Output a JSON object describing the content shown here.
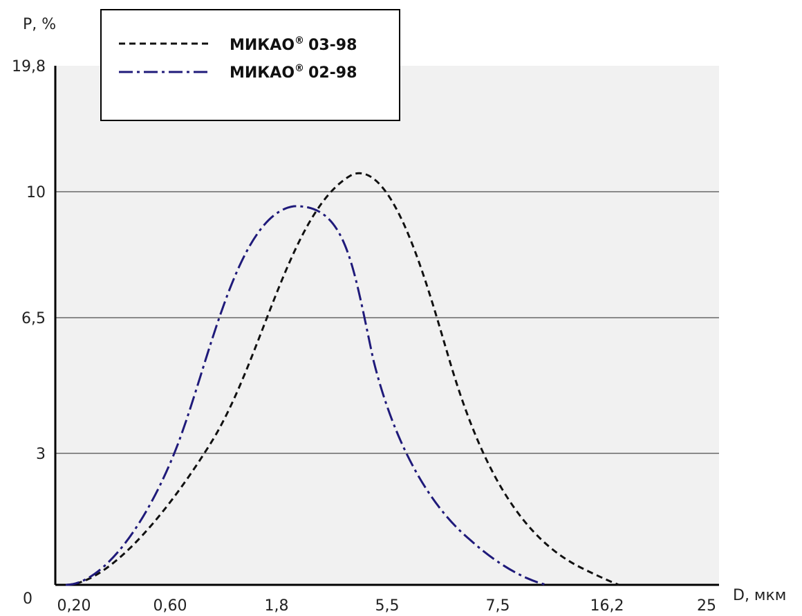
{
  "chart_data": {
    "type": "line",
    "ylabel": "P, %",
    "xlabel": "D, мкм",
    "y_ticks": [
      "0",
      "3",
      "6,5",
      "10",
      "19,8"
    ],
    "x_ticks": [
      "0,20",
      "0,60",
      "1,8",
      "5,5",
      "7,5",
      "16,2",
      "25"
    ],
    "x_scale": "categorical (irregular tick spacing)",
    "grid": "horizontal lines at 3, 6,5 and 10",
    "legend": {
      "placement": "top-left",
      "entries": [
        {
          "label": "МИКАО",
          "suffix": "03-98",
          "sup": "®",
          "line_style": "dashed"
        },
        {
          "label": "МИКАО",
          "suffix": "02-98",
          "sup": "®",
          "line_style": "dash-dot"
        }
      ]
    },
    "series": [
      {
        "label_ref": "МИКАО® 03-98",
        "color": "#111111",
        "line_style": "dashed",
        "points": [
          {
            "x": "0,20",
            "y": 0
          },
          {
            "x": "0,60",
            "y": 1.5
          },
          {
            "x": "1,8",
            "y": 6.5
          },
          {
            "x": "5,5",
            "y": 10.5
          },
          {
            "x": "7,5",
            "y": 3.3
          },
          {
            "x": "16,2",
            "y": 0
          }
        ]
      },
      {
        "label_ref": "МИКАО® 02-98",
        "color": "#1f1a7a",
        "line_style": "dash-dot",
        "points": [
          {
            "x": "0,20",
            "y": 0
          },
          {
            "x": "0,60",
            "y": 3
          },
          {
            "x": "1,8",
            "y": 9.6
          },
          {
            "x": "5,5",
            "y": 3
          },
          {
            "x": "7,5",
            "y": 0.3
          },
          {
            "x": "16,2",
            "y": 0
          }
        ]
      }
    ]
  },
  "colors": {
    "plot_background": "#f1f1f1",
    "grid": "#8a8a8a",
    "axis": "#000000"
  }
}
